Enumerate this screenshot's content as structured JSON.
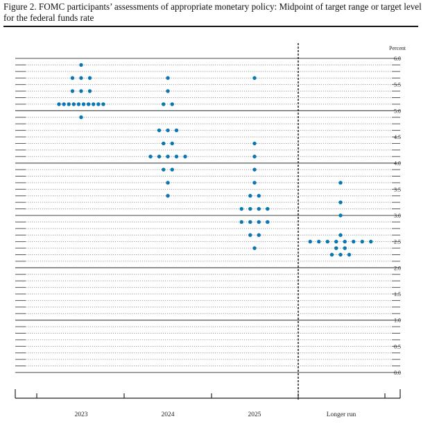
{
  "title": "Figure 2.  FOMC participants’ assessments of appropriate monetary policy: Midpoint of target range or target level for the federal funds rate",
  "chart_data": {
    "type": "scatter",
    "title": "Figure 2. FOMC participants’ assessments of appropriate monetary policy: Midpoint of target range or target level for the federal funds rate",
    "ylabel": "Percent",
    "ylim": [
      0,
      6
    ],
    "yticks": [
      "6.0",
      "5.5",
      "5.0",
      "4.5",
      "4.0",
      "3.5",
      "3.0",
      "2.5",
      "2.0",
      "1.5",
      "1.0",
      "0.5",
      "0.0"
    ],
    "grid_step": 0.125,
    "categories": [
      "2023",
      "2024",
      "2025",
      "Longer run"
    ],
    "dot_color": "#0a77b3",
    "series": [
      {
        "name": "2023",
        "points": [
          {
            "y": 5.875,
            "n": 1
          },
          {
            "y": 5.625,
            "n": 3
          },
          {
            "y": 5.375,
            "n": 3
          },
          {
            "y": 5.125,
            "n": 10
          },
          {
            "y": 4.875,
            "n": 1
          }
        ]
      },
      {
        "name": "2024",
        "points": [
          {
            "y": 5.625,
            "n": 1
          },
          {
            "y": 5.375,
            "n": 1
          },
          {
            "y": 5.125,
            "n": 2
          },
          {
            "y": 4.625,
            "n": 3
          },
          {
            "y": 4.375,
            "n": 2
          },
          {
            "y": 4.125,
            "n": 5
          },
          {
            "y": 3.875,
            "n": 2
          },
          {
            "y": 3.625,
            "n": 1
          },
          {
            "y": 3.375,
            "n": 1
          }
        ]
      },
      {
        "name": "2025",
        "points": [
          {
            "y": 5.625,
            "n": 1
          },
          {
            "y": 4.375,
            "n": 1
          },
          {
            "y": 4.125,
            "n": 1
          },
          {
            "y": 3.875,
            "n": 1
          },
          {
            "y": 3.625,
            "n": 1
          },
          {
            "y": 3.375,
            "n": 2
          },
          {
            "y": 3.125,
            "n": 4
          },
          {
            "y": 2.875,
            "n": 4
          },
          {
            "y": 2.625,
            "n": 2
          },
          {
            "y": 2.375,
            "n": 1
          }
        ]
      },
      {
        "name": "Longer run",
        "points": [
          {
            "y": 3.625,
            "n": 1
          },
          {
            "y": 3.25,
            "n": 1
          },
          {
            "y": 3.0,
            "n": 1
          },
          {
            "y": 2.625,
            "n": 1
          },
          {
            "y": 2.5,
            "n": 8
          },
          {
            "y": 2.375,
            "n": 2
          },
          {
            "y": 2.25,
            "n": 3
          }
        ]
      }
    ]
  }
}
